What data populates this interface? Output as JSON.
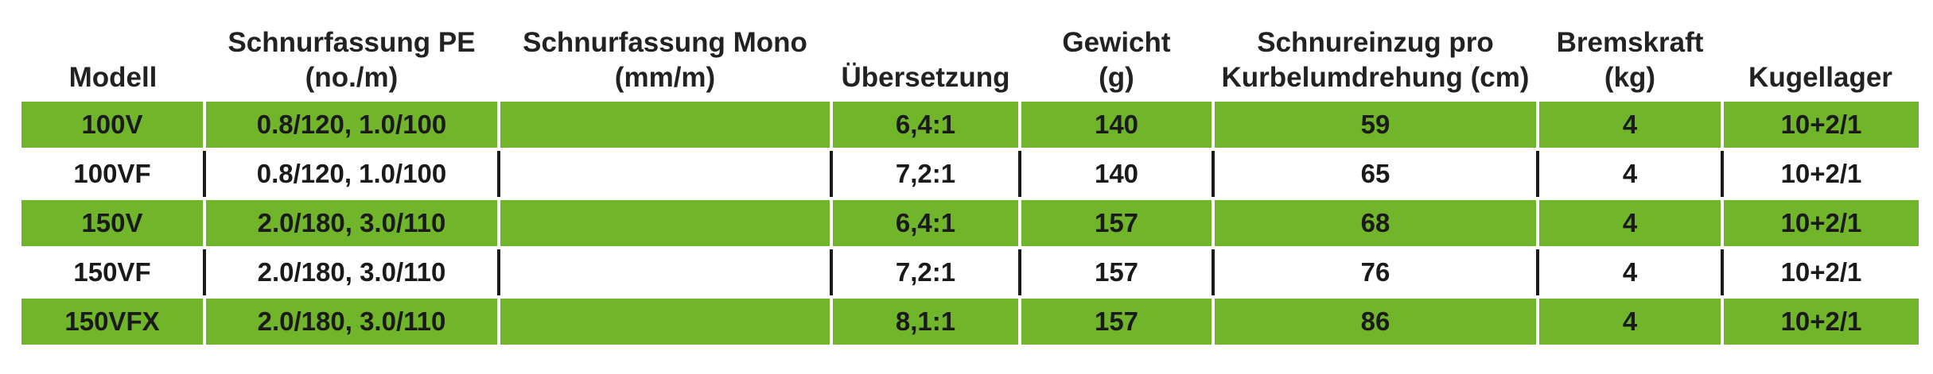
{
  "colors": {
    "accent": "#71b52b",
    "text": "#1a1a1a"
  },
  "table": {
    "headers": [
      [
        "Modell",
        ""
      ],
      [
        "Schnurfassung PE",
        "(no./m)"
      ],
      [
        "Schnurfassung Mono",
        "(mm/m)"
      ],
      [
        "Übersetzung",
        ""
      ],
      [
        "Gewicht",
        "(g)"
      ],
      [
        "Schnureinzug pro",
        "Kurbelumdrehung (cm)"
      ],
      [
        "Bremskraft",
        "(kg)"
      ],
      [
        "Kugellager",
        ""
      ]
    ],
    "rows": [
      [
        "100V",
        "0.8/120, 1.0/100",
        "",
        "6,4:1",
        "140",
        "59",
        "4",
        "10+2/1"
      ],
      [
        "100VF",
        "0.8/120, 1.0/100",
        "",
        "7,2:1",
        "140",
        "65",
        "4",
        "10+2/1"
      ],
      [
        "150V",
        "2.0/180, 3.0/110",
        "",
        "6,4:1",
        "157",
        "68",
        "4",
        "10+2/1"
      ],
      [
        "150VF",
        "2.0/180, 3.0/110",
        "",
        "7,2:1",
        "157",
        "76",
        "4",
        "10+2/1"
      ],
      [
        "150VFX",
        "2.0/180, 3.0/110",
        "",
        "8,1:1",
        "157",
        "86",
        "4",
        "10+2/1"
      ]
    ]
  }
}
